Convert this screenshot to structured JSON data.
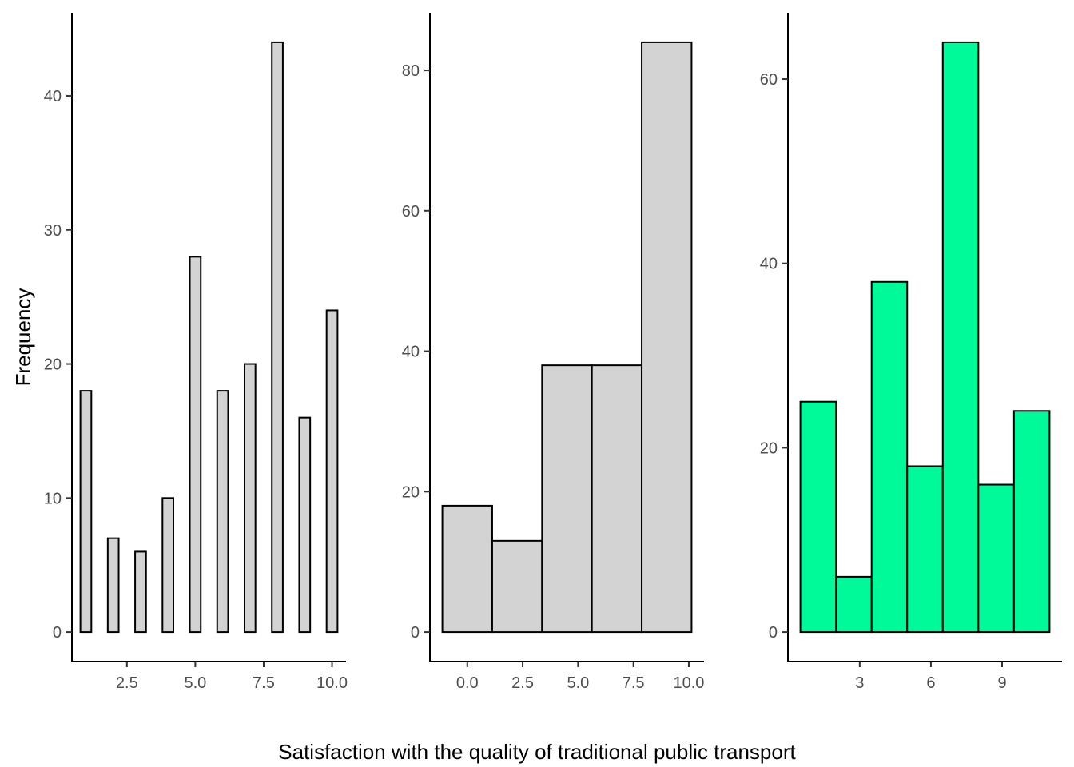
{
  "figure": {
    "xlabel": "Satisfaction with the quality of traditional public transport",
    "ylabel": "Frequency"
  },
  "chart_data": [
    {
      "type": "bar",
      "panel": "left",
      "fill": "#d3d3d3",
      "stroke": "#000000",
      "bar_width": 0.4,
      "x": [
        1,
        2,
        3,
        4,
        5,
        6,
        7,
        8,
        9,
        10
      ],
      "values": [
        18,
        7,
        6,
        10,
        28,
        18,
        20,
        44,
        16,
        24
      ],
      "xlim": [
        0.49,
        10.51
      ],
      "ylim": [
        -2.2,
        46.2
      ],
      "xticks": [
        2.5,
        5.0,
        7.5,
        10.0
      ],
      "xtick_labels": [
        "2.5",
        "5.0",
        "7.5",
        "10.0"
      ],
      "yticks": [
        0,
        10,
        20,
        30,
        40
      ],
      "ytick_labels": [
        "0",
        "10",
        "20",
        "30",
        "40"
      ]
    },
    {
      "type": "bar",
      "panel": "middle",
      "fill": "#d3d3d3",
      "stroke": "#000000",
      "bins": [
        [
          -1.125,
          1.125
        ],
        [
          1.125,
          3.375
        ],
        [
          3.375,
          5.625
        ],
        [
          5.625,
          7.875
        ],
        [
          7.875,
          10.125
        ]
      ],
      "values": [
        18,
        13,
        38,
        38,
        84
      ],
      "xlim": [
        -1.687,
        10.687
      ],
      "ylim": [
        -4.2,
        88.2
      ],
      "xticks": [
        0.0,
        2.5,
        5.0,
        7.5,
        10.0
      ],
      "xtick_labels": [
        "0.0",
        "2.5",
        "5.0",
        "7.5",
        "10.0"
      ],
      "yticks": [
        0,
        20,
        40,
        60,
        80
      ],
      "ytick_labels": [
        "0",
        "20",
        "40",
        "60",
        "80"
      ]
    },
    {
      "type": "bar",
      "panel": "right",
      "fill": "#00fa9a",
      "stroke": "#000000",
      "bins": [
        [
          0.5,
          2.0
        ],
        [
          2.0,
          3.5
        ],
        [
          3.5,
          5.0
        ],
        [
          5.0,
          6.5
        ],
        [
          6.5,
          8.0
        ],
        [
          8.0,
          9.5
        ],
        [
          9.5,
          11.0
        ]
      ],
      "values": [
        25,
        6,
        38,
        18,
        64,
        16,
        24
      ],
      "xlim": [
        -0.025,
        11.525
      ],
      "ylim": [
        -3.2,
        67.2
      ],
      "xticks": [
        3,
        6,
        9
      ],
      "xtick_labels": [
        "3",
        "6",
        "9"
      ],
      "yticks": [
        0,
        20,
        40,
        60
      ],
      "ytick_labels": [
        "0",
        "20",
        "40",
        "60"
      ]
    }
  ]
}
